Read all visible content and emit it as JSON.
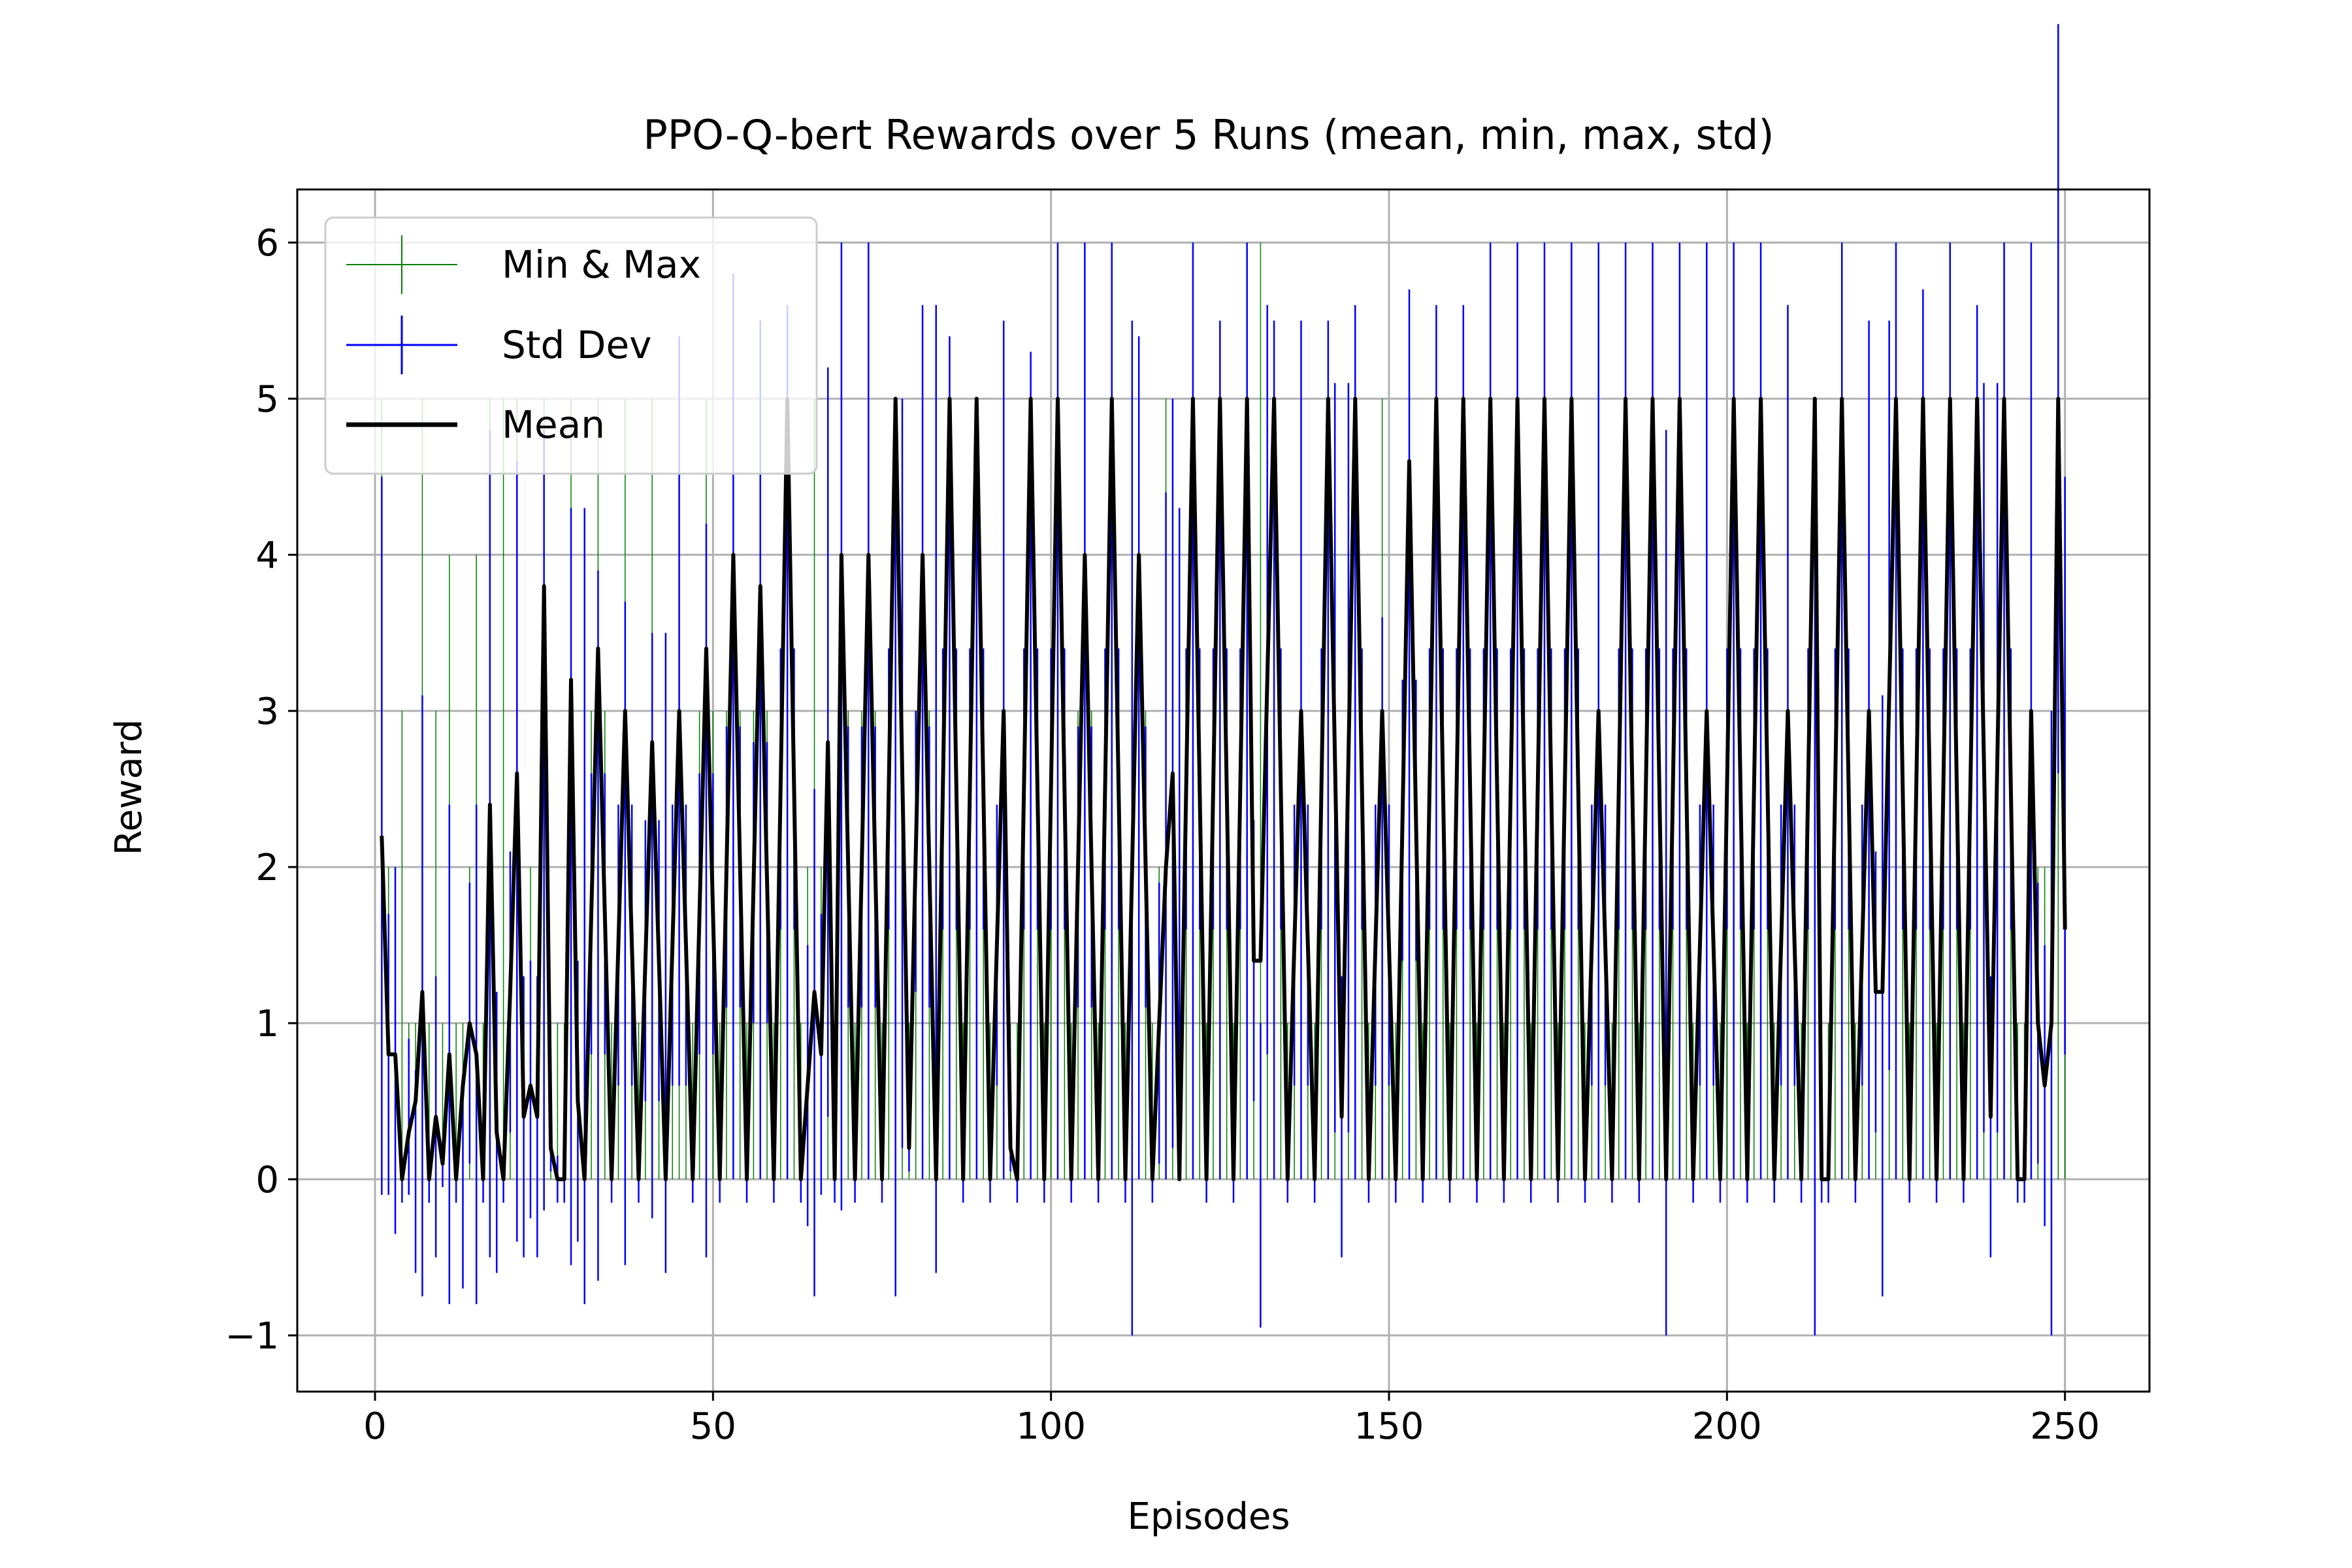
{
  "chart_data": {
    "type": "line",
    "title": "PPO-Q-bert Rewards over 5 Runs (mean, min, max, std)",
    "xlabel": "Episodes",
    "ylabel": "Reward",
    "xlim": [
      -11.5,
      262.5
    ],
    "ylim": [
      -1.36,
      6.34
    ],
    "xticks": [
      0,
      50,
      100,
      150,
      200,
      250
    ],
    "xtick_labels": [
      "0",
      "50",
      "100",
      "150",
      "200",
      "250"
    ],
    "yticks": [
      -1,
      0,
      1,
      2,
      3,
      4,
      5,
      6
    ],
    "ytick_labels": [
      "−1",
      "0",
      "1",
      "2",
      "3",
      "4",
      "5",
      "6"
    ],
    "grid": true,
    "legend": {
      "position": "top-left",
      "entries": [
        {
          "label": "Min & Max",
          "color": "#008000",
          "style": "errorbar"
        },
        {
          "label": "Std Dev",
          "color": "#0000ff",
          "style": "errorbar"
        },
        {
          "label": "Mean",
          "color": "#000000",
          "style": "line"
        }
      ]
    },
    "series_colors": {
      "min_max": "#008000",
      "std": "#0000ff",
      "mean": "#000000"
    },
    "x_start": 1,
    "x_end": 250,
    "mean_curve": [
      [
        1,
        2.2
      ],
      [
        2,
        0.8
      ],
      [
        3,
        0.8
      ],
      [
        4,
        0.0
      ],
      [
        5,
        0.3
      ],
      [
        6,
        0.5
      ],
      [
        7,
        1.2
      ],
      [
        8,
        0.0
      ],
      [
        9,
        0.4
      ],
      [
        10,
        0.1
      ],
      [
        11,
        0.8
      ],
      [
        12,
        0.0
      ],
      [
        13,
        0.6
      ],
      [
        14,
        1.0
      ],
      [
        15,
        0.8
      ],
      [
        16,
        0.0
      ],
      [
        17,
        2.4
      ],
      [
        18,
        0.3
      ],
      [
        19,
        0.0
      ],
      [
        20,
        1.2
      ],
      [
        21,
        2.6
      ],
      [
        22,
        0.4
      ],
      [
        23,
        0.6
      ],
      [
        24,
        0.4
      ],
      [
        25,
        3.8
      ],
      [
        26,
        0.2
      ],
      [
        27,
        0.0
      ],
      [
        28,
        0.0
      ],
      [
        29,
        3.2
      ],
      [
        30,
        0.5
      ],
      [
        31,
        0.0
      ],
      [
        33,
        3.4
      ],
      [
        35,
        0.0
      ],
      [
        37,
        3.0
      ],
      [
        39,
        0.0
      ],
      [
        41,
        2.8
      ],
      [
        43,
        0.0
      ],
      [
        45,
        3.0
      ],
      [
        47,
        0.0
      ],
      [
        49,
        3.4
      ],
      [
        51,
        0.0
      ],
      [
        53,
        4.0
      ],
      [
        55,
        0.0
      ],
      [
        57,
        3.8
      ],
      [
        59,
        0.0
      ],
      [
        61,
        5.0
      ],
      [
        63,
        0.0
      ],
      [
        65,
        1.2
      ],
      [
        66,
        0.8
      ],
      [
        67,
        2.8
      ],
      [
        68,
        0.0
      ],
      [
        69,
        4.0
      ],
      [
        71,
        0.0
      ],
      [
        73,
        4.0
      ],
      [
        75,
        0.0
      ],
      [
        77,
        5.0
      ],
      [
        79,
        0.2
      ],
      [
        81,
        4.0
      ],
      [
        83,
        0.0
      ],
      [
        85,
        5.0
      ],
      [
        87,
        0.0
      ],
      [
        89,
        5.0
      ],
      [
        91,
        0.0
      ],
      [
        93,
        3.0
      ],
      [
        94,
        0.2
      ],
      [
        95,
        0.0
      ],
      [
        97,
        5.0
      ],
      [
        99,
        0.0
      ],
      [
        101,
        5.0
      ],
      [
        103,
        0.0
      ],
      [
        105,
        4.0
      ],
      [
        107,
        0.0
      ],
      [
        109,
        5.0
      ],
      [
        111,
        0.0
      ],
      [
        113,
        4.0
      ],
      [
        115,
        0.0
      ],
      [
        117,
        2.0
      ],
      [
        118,
        2.6
      ],
      [
        119,
        0.0
      ],
      [
        121,
        5.0
      ],
      [
        123,
        0.0
      ],
      [
        125,
        5.0
      ],
      [
        127,
        0.0
      ],
      [
        129,
        5.0
      ],
      [
        130,
        1.4
      ],
      [
        131,
        1.4
      ],
      [
        133,
        5.0
      ],
      [
        135,
        0.0
      ],
      [
        137,
        3.0
      ],
      [
        139,
        0.0
      ],
      [
        141,
        5.0
      ],
      [
        143,
        0.4
      ],
      [
        145,
        5.0
      ],
      [
        147,
        0.0
      ],
      [
        149,
        3.0
      ],
      [
        151,
        0.0
      ],
      [
        153,
        4.6
      ],
      [
        155,
        0.0
      ],
      [
        157,
        5.0
      ],
      [
        159,
        0.0
      ],
      [
        161,
        5.0
      ],
      [
        163,
        0.0
      ],
      [
        165,
        5.0
      ],
      [
        167,
        0.0
      ],
      [
        169,
        5.0
      ],
      [
        171,
        0.0
      ],
      [
        173,
        5.0
      ],
      [
        175,
        0.0
      ],
      [
        177,
        5.0
      ],
      [
        179,
        0.0
      ],
      [
        181,
        3.0
      ],
      [
        183,
        0.0
      ],
      [
        185,
        5.0
      ],
      [
        187,
        0.0
      ],
      [
        189,
        5.0
      ],
      [
        191,
        0.0
      ],
      [
        193,
        5.0
      ],
      [
        195,
        0.0
      ],
      [
        197,
        3.0
      ],
      [
        199,
        0.0
      ],
      [
        201,
        5.0
      ],
      [
        203,
        0.0
      ],
      [
        205,
        5.0
      ],
      [
        207,
        0.0
      ],
      [
        209,
        3.0
      ],
      [
        211,
        0.0
      ],
      [
        213,
        5.0
      ],
      [
        214,
        0.0
      ],
      [
        215,
        0.0
      ],
      [
        217,
        5.0
      ],
      [
        219,
        0.0
      ],
      [
        221,
        3.0
      ],
      [
        222,
        1.2
      ],
      [
        223,
        1.2
      ],
      [
        225,
        5.0
      ],
      [
        227,
        0.0
      ],
      [
        229,
        5.0
      ],
      [
        231,
        0.0
      ],
      [
        233,
        5.0
      ],
      [
        235,
        0.0
      ],
      [
        237,
        5.0
      ],
      [
        239,
        0.4
      ],
      [
        241,
        5.0
      ],
      [
        243,
        0.0
      ],
      [
        244,
        0.0
      ],
      [
        245,
        3.0
      ],
      [
        246,
        1.0
      ],
      [
        247,
        0.6
      ],
      [
        248,
        1.0
      ],
      [
        249,
        5.0
      ],
      [
        250,
        1.6
      ]
    ],
    "std_extremes": [
      [
        1,
        -0.1,
        4.5
      ],
      [
        3,
        -0.35,
        2.0
      ],
      [
        5,
        -0.1,
        0.9
      ],
      [
        6,
        -0.6,
        0.7
      ],
      [
        7,
        -0.75,
        3.1
      ],
      [
        11,
        -0.8,
        2.4
      ],
      [
        13,
        -0.7,
        0.5
      ],
      [
        15,
        -0.8,
        2.4
      ],
      [
        17,
        -0.5,
        4.8
      ],
      [
        21,
        -0.4,
        4.6
      ],
      [
        23,
        -0.25,
        1.4
      ],
      [
        25,
        -0.2,
        4.8
      ],
      [
        29,
        -0.55,
        4.3
      ],
      [
        31,
        -0.8,
        4.3
      ],
      [
        33,
        -0.65,
        3.9
      ],
      [
        37,
        -0.55,
        3.7
      ],
      [
        41,
        -0.25,
        3.5
      ],
      [
        43,
        -0.6,
        3.5
      ],
      [
        49,
        -0.5,
        4.2
      ],
      [
        53,
        0.0,
        5.8
      ],
      [
        57,
        0.0,
        5.5
      ],
      [
        61,
        0.0,
        5.6
      ],
      [
        65,
        -0.75,
        2.5
      ],
      [
        69,
        -0.2,
        6.0
      ],
      [
        73,
        0.0,
        6.0
      ],
      [
        77,
        -0.75,
        4.5
      ],
      [
        81,
        0.0,
        5.6
      ],
      [
        83,
        -0.6,
        5.6
      ],
      [
        85,
        0.0,
        5.4
      ],
      [
        89,
        0.0,
        4.5
      ],
      [
        93,
        0.0,
        5.5
      ],
      [
        97,
        0.0,
        5.3
      ],
      [
        101,
        0.0,
        6.0
      ],
      [
        105,
        0.0,
        6.0
      ],
      [
        109,
        0.0,
        6.0
      ],
      [
        112,
        -1.0,
        5.5
      ],
      [
        113,
        0.0,
        5.4
      ],
      [
        117,
        0.0,
        4.4
      ],
      [
        119,
        0.0,
        4.3
      ],
      [
        121,
        0.0,
        6.0
      ],
      [
        125,
        0.0,
        5.5
      ],
      [
        129,
        0.0,
        6.0
      ],
      [
        131,
        -0.95,
        1.0
      ],
      [
        133,
        0.0,
        5.5
      ],
      [
        137,
        0.0,
        5.5
      ],
      [
        141,
        0.0,
        5.5
      ],
      [
        145,
        0.0,
        5.6
      ],
      [
        149,
        0.0,
        3.6
      ],
      [
        153,
        0.0,
        5.7
      ],
      [
        157,
        0.0,
        5.6
      ],
      [
        161,
        0.0,
        5.6
      ],
      [
        165,
        0.0,
        6.0
      ],
      [
        169,
        0.0,
        6.0
      ],
      [
        173,
        0.0,
        6.0
      ],
      [
        177,
        0.0,
        6.0
      ],
      [
        181,
        0.0,
        6.0
      ],
      [
        185,
        0.0,
        6.0
      ],
      [
        189,
        0.0,
        6.0
      ],
      [
        191,
        -1.0,
        4.8
      ],
      [
        193,
        0.0,
        6.0
      ],
      [
        197,
        0.0,
        6.0
      ],
      [
        201,
        0.0,
        6.0
      ],
      [
        205,
        0.0,
        6.0
      ],
      [
        209,
        0.0,
        5.6
      ],
      [
        213,
        -1.0,
        4.0
      ],
      [
        217,
        0.0,
        6.0
      ],
      [
        221,
        0.0,
        5.5
      ],
      [
        223,
        -0.75,
        3.1
      ],
      [
        225,
        0.0,
        6.0
      ],
      [
        229,
        0.0,
        5.7
      ],
      [
        233,
        0.0,
        6.0
      ],
      [
        237,
        0.0,
        5.6
      ],
      [
        241,
        0.0,
        6.0
      ],
      [
        245,
        0.0,
        6.0
      ],
      [
        248,
        -1.0,
        3.0
      ],
      [
        250,
        0.8,
        4.5
      ]
    ],
    "minmax_extremes": [
      [
        1,
        0,
        5
      ],
      [
        4,
        0,
        3
      ],
      [
        7,
        0,
        5
      ],
      [
        9,
        0,
        3
      ],
      [
        11,
        0,
        4
      ],
      [
        13,
        0,
        1
      ],
      [
        15,
        0,
        4
      ],
      [
        17,
        0,
        5
      ],
      [
        19,
        0,
        5
      ],
      [
        21,
        0,
        5
      ],
      [
        25,
        0,
        5
      ],
      [
        29,
        0,
        5
      ],
      [
        33,
        0,
        5
      ],
      [
        37,
        0,
        5
      ],
      [
        41,
        0,
        5
      ],
      [
        45,
        0,
        5
      ],
      [
        49,
        0,
        5
      ],
      [
        53,
        0,
        5
      ],
      [
        57,
        0,
        5
      ],
      [
        61,
        0,
        5
      ],
      [
        65,
        0,
        5
      ],
      [
        67,
        0,
        5
      ],
      [
        69,
        0,
        5
      ],
      [
        73,
        0,
        5
      ],
      [
        77,
        0,
        5
      ],
      [
        81,
        0,
        5
      ],
      [
        85,
        0,
        5
      ],
      [
        89,
        0,
        5
      ],
      [
        93,
        0,
        5
      ],
      [
        97,
        0,
        5
      ],
      [
        101,
        0,
        5
      ],
      [
        105,
        0,
        5
      ],
      [
        109,
        0,
        5
      ],
      [
        113,
        0,
        5
      ],
      [
        117,
        0,
        5
      ],
      [
        121,
        0,
        5
      ],
      [
        125,
        0,
        5
      ],
      [
        129,
        0,
        5
      ],
      [
        131,
        0,
        6
      ],
      [
        133,
        0,
        5
      ],
      [
        137,
        0,
        5
      ],
      [
        141,
        0,
        5
      ],
      [
        145,
        0,
        5
      ],
      [
        149,
        0,
        5
      ],
      [
        153,
        0,
        5
      ],
      [
        157,
        0,
        5
      ],
      [
        161,
        0,
        5
      ],
      [
        165,
        0,
        5
      ],
      [
        169,
        0,
        5
      ],
      [
        173,
        0,
        5
      ],
      [
        177,
        0,
        5
      ],
      [
        181,
        0,
        5
      ],
      [
        185,
        0,
        5
      ],
      [
        189,
        0,
        5
      ],
      [
        193,
        0,
        5
      ],
      [
        197,
        0,
        5
      ],
      [
        201,
        0,
        5
      ],
      [
        205,
        0,
        5
      ],
      [
        209,
        0,
        5
      ],
      [
        213,
        0,
        5
      ],
      [
        217,
        0,
        5
      ],
      [
        221,
        0,
        5
      ],
      [
        225,
        0,
        5
      ],
      [
        229,
        0,
        5
      ],
      [
        233,
        0,
        5
      ],
      [
        237,
        0,
        5
      ],
      [
        241,
        0,
        5
      ],
      [
        245,
        0,
        5
      ],
      [
        249,
        0,
        5
      ]
    ]
  }
}
